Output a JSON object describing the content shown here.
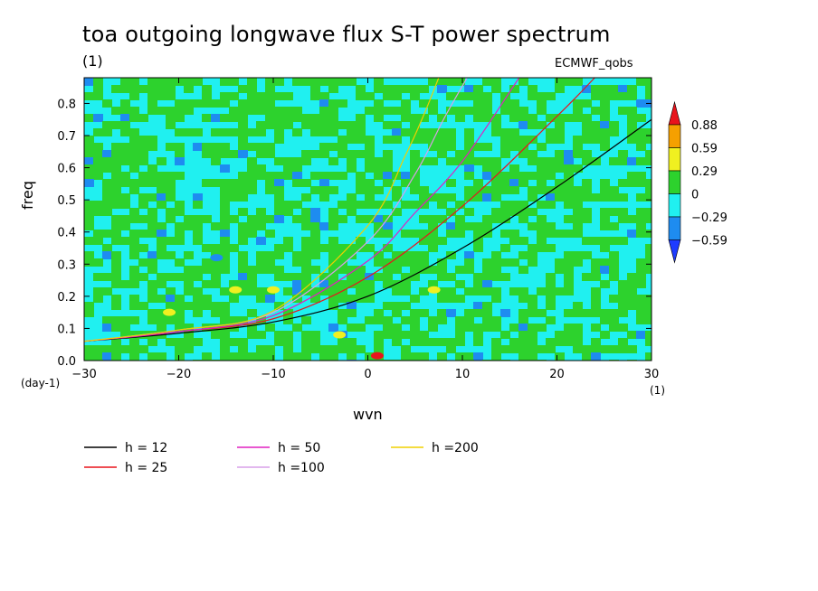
{
  "title": "toa outgoing longwave flux S-T power spectrum",
  "subtitle_units": "(1)",
  "experiment": "ECMWF_qobs",
  "chart_data": {
    "type": "heatmap",
    "xlabel": "wvn",
    "x_units": "(1)",
    "ylabel": "freq",
    "y_units": "(day-1)",
    "xlim": [
      -30,
      30
    ],
    "ylim": [
      0.0,
      0.88
    ],
    "x_ticks": [
      "-30",
      "-20",
      "-10",
      "0",
      "10",
      "20",
      "30"
    ],
    "y_ticks": [
      "0.0",
      "0.1",
      "0.2",
      "0.3",
      "0.4",
      "0.5",
      "0.6",
      "0.7",
      "0.8"
    ],
    "colorbar": {
      "labels": [
        "0.88",
        "0.59",
        "0.29",
        "0",
        "-0.29",
        "-0.59"
      ],
      "colors": [
        "#e8141c",
        "#f5a000",
        "#f0f020",
        "#2dd22d",
        "#20f0f0",
        "#1e8cf0",
        "#1e3cff"
      ]
    },
    "dispersion_curves": [
      {
        "label": "h = 12",
        "color": "#000000",
        "x": [
          -30,
          -20,
          -10,
          0,
          10,
          20,
          30
        ],
        "y": [
          0.06,
          0.085,
          0.12,
          0.2,
          0.35,
          0.54,
          0.75
        ]
      },
      {
        "label": "h = 25",
        "color": "#e8141c",
        "x": [
          -30,
          -20,
          -10,
          0,
          10,
          20,
          24
        ],
        "y": [
          0.06,
          0.09,
          0.13,
          0.26,
          0.48,
          0.76,
          0.88
        ]
      },
      {
        "label": "h = 50",
        "color": "#e020c0",
        "x": [
          -30,
          -20,
          -10,
          0,
          5,
          10,
          16
        ],
        "y": [
          0.06,
          0.09,
          0.14,
          0.31,
          0.46,
          0.62,
          0.88
        ]
      },
      {
        "label": "h =100",
        "color": "#d8a0e8",
        "x": [
          -30,
          -20,
          -10,
          0,
          5,
          8,
          10.5
        ],
        "y": [
          0.06,
          0.095,
          0.15,
          0.37,
          0.58,
          0.75,
          0.88
        ]
      },
      {
        "label": "h =200",
        "color": "#f0d000",
        "x": [
          -30,
          -20,
          -10,
          0,
          4,
          6,
          7.5
        ],
        "y": [
          0.06,
          0.095,
          0.155,
          0.42,
          0.64,
          0.77,
          0.88
        ]
      }
    ],
    "grid": false
  }
}
